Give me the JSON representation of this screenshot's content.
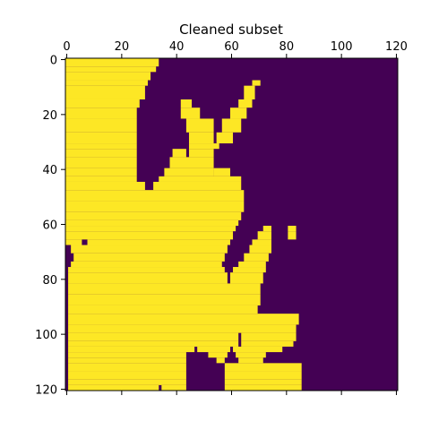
{
  "chart_data": {
    "type": "heatmap",
    "title": "Cleaned subset",
    "xlabel": "",
    "ylabel": "",
    "xlim": [
      0,
      120
    ],
    "ylim": [
      0,
      120
    ],
    "y_inverted": true,
    "x_axis_position": "top",
    "x_ticks": [
      0,
      20,
      40,
      60,
      80,
      100,
      120
    ],
    "y_ticks": [
      0,
      20,
      40,
      60,
      80,
      100,
      120
    ],
    "colormap": "viridis",
    "values_encoding": "binary mask: 1 = yellow region, 0 = purple background",
    "colors": {
      "high": "#fde725",
      "low": "#440154"
    },
    "high_region_rows": [
      {
        "y": 0,
        "segments": [
          [
            0,
            33
          ]
        ]
      },
      {
        "y": 3,
        "segments": [
          [
            0,
            32
          ]
        ]
      },
      {
        "y": 5,
        "segments": [
          [
            0,
            30
          ]
        ]
      },
      {
        "y": 8,
        "segments": [
          [
            0,
            29
          ],
          [
            68,
            70
          ]
        ]
      },
      {
        "y": 10,
        "segments": [
          [
            0,
            28
          ],
          [
            65,
            68
          ]
        ]
      },
      {
        "y": 15,
        "segments": [
          [
            0,
            26
          ],
          [
            42,
            45
          ],
          [
            63,
            67
          ]
        ]
      },
      {
        "y": 18,
        "segments": [
          [
            0,
            25
          ],
          [
            42,
            48
          ],
          [
            60,
            65
          ]
        ]
      },
      {
        "y": 22,
        "segments": [
          [
            0,
            25
          ],
          [
            44,
            53
          ],
          [
            57,
            63
          ]
        ]
      },
      {
        "y": 27,
        "segments": [
          [
            0,
            25
          ],
          [
            45,
            53
          ],
          [
            55,
            60
          ]
        ]
      },
      {
        "y": 31,
        "segments": [
          [
            0,
            25
          ],
          [
            45,
            55
          ]
        ]
      },
      {
        "y": 33,
        "segments": [
          [
            0,
            25
          ],
          [
            39,
            43
          ],
          [
            45,
            53
          ]
        ]
      },
      {
        "y": 36,
        "segments": [
          [
            0,
            25
          ],
          [
            38,
            53
          ]
        ]
      },
      {
        "y": 40,
        "segments": [
          [
            0,
            25
          ],
          [
            36,
            53
          ],
          [
            54,
            59
          ]
        ]
      },
      {
        "y": 43,
        "segments": [
          [
            0,
            25
          ],
          [
            34,
            63
          ]
        ]
      },
      {
        "y": 45,
        "segments": [
          [
            0,
            28
          ],
          [
            32,
            63
          ]
        ]
      },
      {
        "y": 48,
        "segments": [
          [
            0,
            64
          ]
        ]
      },
      {
        "y": 52,
        "segments": [
          [
            0,
            64
          ]
        ]
      },
      {
        "y": 56,
        "segments": [
          [
            0,
            63
          ]
        ]
      },
      {
        "y": 59,
        "segments": [
          [
            0,
            62
          ]
        ]
      },
      {
        "y": 61,
        "segments": [
          [
            0,
            61
          ],
          [
            72,
            74
          ],
          [
            81,
            83
          ]
        ]
      },
      {
        "y": 63,
        "segments": [
          [
            0,
            60
          ],
          [
            70,
            74
          ],
          [
            81,
            83
          ]
        ]
      },
      {
        "y": 66,
        "segments": [
          [
            0,
            5
          ],
          [
            8,
            59
          ],
          [
            68,
            74
          ]
        ]
      },
      {
        "y": 68,
        "segments": [
          [
            2,
            58
          ],
          [
            67,
            74
          ]
        ]
      },
      {
        "y": 71,
        "segments": [
          [
            3,
            57
          ],
          [
            65,
            73
          ]
        ]
      },
      {
        "y": 74,
        "segments": [
          [
            2,
            56
          ],
          [
            63,
            72
          ]
        ]
      },
      {
        "y": 76,
        "segments": [
          [
            1,
            57
          ],
          [
            61,
            72
          ]
        ]
      },
      {
        "y": 78,
        "segments": [
          [
            1,
            58
          ],
          [
            60,
            71
          ]
        ]
      },
      {
        "y": 82,
        "segments": [
          [
            1,
            70
          ]
        ]
      },
      {
        "y": 86,
        "segments": [
          [
            1,
            70
          ]
        ]
      },
      {
        "y": 90,
        "segments": [
          [
            1,
            69
          ]
        ]
      },
      {
        "y": 93,
        "segments": [
          [
            1,
            84
          ]
        ]
      },
      {
        "y": 97,
        "segments": [
          [
            1,
            83
          ]
        ]
      },
      {
        "y": 100,
        "segments": [
          [
            1,
            62
          ],
          [
            64,
            83
          ]
        ]
      },
      {
        "y": 103,
        "segments": [
          [
            1,
            62
          ],
          [
            64,
            82
          ]
        ]
      },
      {
        "y": 105,
        "segments": [
          [
            1,
            46
          ],
          [
            48,
            59
          ],
          [
            61,
            78
          ]
        ]
      },
      {
        "y": 107,
        "segments": [
          [
            1,
            43
          ],
          [
            52,
            58
          ],
          [
            62,
            72
          ]
        ]
      },
      {
        "y": 109,
        "segments": [
          [
            1,
            43
          ],
          [
            55,
            57
          ],
          [
            63,
            71
          ]
        ]
      },
      {
        "y": 111,
        "segments": [
          [
            1,
            43
          ],
          [
            58,
            85
          ]
        ]
      },
      {
        "y": 114,
        "segments": [
          [
            1,
            43
          ],
          [
            58,
            85
          ]
        ]
      },
      {
        "y": 117,
        "segments": [
          [
            1,
            43
          ],
          [
            58,
            85
          ]
        ]
      },
      {
        "y": 119,
        "segments": [
          [
            1,
            33
          ],
          [
            35,
            43
          ],
          [
            58,
            85
          ]
        ]
      },
      {
        "y": 121,
        "segments": []
      }
    ]
  }
}
